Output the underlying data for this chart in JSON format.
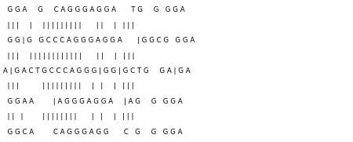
{
  "rows": [
    "  G G A     G     C A G G G A G G A       T G     G   G G A",
    "  | | |     |     | | | | | | | | |       | |     |   | | |",
    "  G G | G   G C C C A G G G A G G A       | G G C G   G G A",
    "  | | |     | | | | | | | | | | | |       | |     |   | | |",
    "A | G A C T G C C C A G G G | G G | G C T G     G A | G A",
    "  | | |           | | | | | | | | |     |   |     |   | | |",
    "  G G A A         | A G G G A G G A     | A G     G   G G A",
    "  | |   |         | | | | | | | |       |   |     |   | | |",
    "  G G C A         C A G G G A G G       C   G     G   G G A"
  ],
  "font_family": "Courier New",
  "font_size": 6.2,
  "bg_color": "#ffffff",
  "text_color": "#000000",
  "fig_width": 4.5,
  "fig_height": 1.81,
  "dpi": 100
}
